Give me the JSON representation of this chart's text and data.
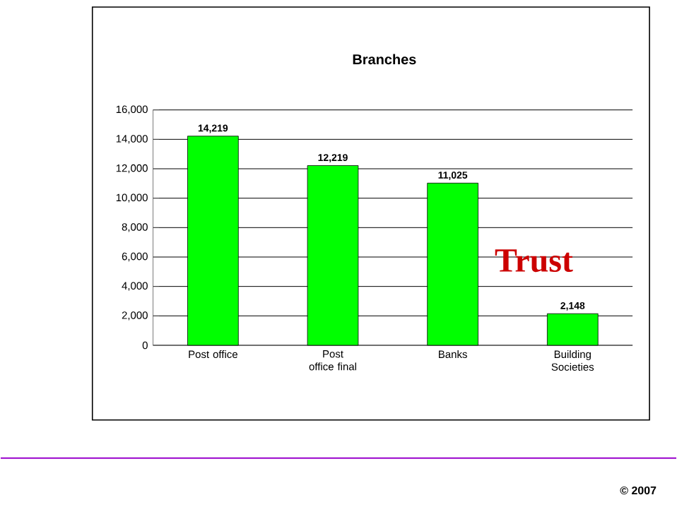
{
  "chart_data": {
    "type": "bar",
    "title": "Branches",
    "categories": [
      "Post office",
      "Post office final",
      "Banks",
      "Building Societies"
    ],
    "values": [
      14219,
      12219,
      11025,
      2148
    ],
    "color": "#00ff00",
    "ylim": [
      0,
      16000
    ],
    "yticks": [
      {
        "value": 0,
        "label": "0"
      },
      {
        "value": 2000,
        "label": "2,000"
      },
      {
        "value": 4000,
        "label": "4,000"
      },
      {
        "value": 6000,
        "label": "6,000"
      },
      {
        "value": 8000,
        "label": "8,000"
      },
      {
        "value": 10000,
        "label": "10,000"
      },
      {
        "value": 12000,
        "label": "12,000"
      },
      {
        "value": 14000,
        "label": "14,000"
      },
      {
        "value": 16000,
        "label": "16,000"
      }
    ],
    "value_labels": [
      "14,219",
      "12,219",
      "11,025",
      "2,148"
    ],
    "grid": "y",
    "annotations": [
      "Trust",
      "© 2007"
    ]
  }
}
